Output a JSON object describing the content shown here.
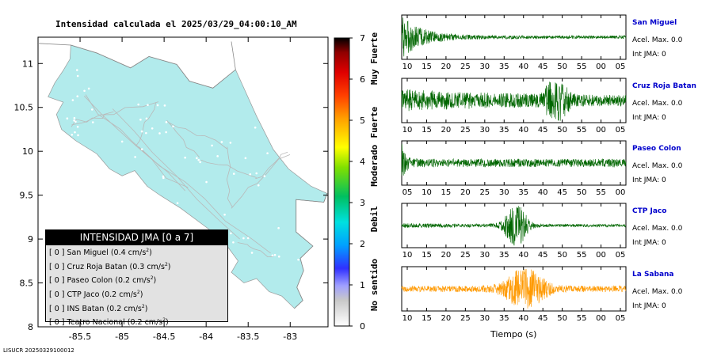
{
  "map": {
    "title": "Intensidad calculada el 2025/03/29_04:00:10_AM",
    "x_ticks": [
      "-85.5",
      "-85",
      "-84.5",
      "-84",
      "-83.5",
      "-83"
    ],
    "x_tick_values": [
      -85.5,
      -85,
      -84.5,
      -84,
      -83.5,
      -83
    ],
    "y_ticks": [
      "11",
      "10.5",
      "10",
      "9.5",
      "9",
      "8.5",
      "8"
    ],
    "y_tick_values": [
      11,
      10.5,
      10,
      9.5,
      9,
      8.5,
      8
    ],
    "xlim": [
      -86,
      -82.55
    ],
    "ylim": [
      8,
      11.3
    ],
    "land_color": "#b2ebec",
    "footer": "LISUCR 20250329100012"
  },
  "colorbar": {
    "ticks": [
      "7",
      "6",
      "5",
      "4",
      "3",
      "2",
      "1",
      "0"
    ],
    "range": [
      0,
      7
    ],
    "labels": [
      "Muy Fuerte",
      "Fuerte",
      "Moderado",
      "Debil",
      "No sentido"
    ]
  },
  "legend": {
    "title": "INTENSIDAD JMA [0 a 7]",
    "unit": "cm/s",
    "items": [
      {
        "jma": "[ 0 ]",
        "station": "San Miguel",
        "pga": "0.4"
      },
      {
        "jma": "[ 0 ]",
        "station": "Cruz Roja Batan",
        "pga": "0.3"
      },
      {
        "jma": "[ 0 ]",
        "station": "Paseo Colon",
        "pga": "0.2"
      },
      {
        "jma": "[ 0 ]",
        "station": "CTP Jaco",
        "pga": "0.2"
      },
      {
        "jma": "[ 0 ]",
        "station": "INS Batan",
        "pga": "0.2"
      },
      {
        "jma": "[ 0 ]",
        "station": "Teatro Nacional",
        "pga": "0.2"
      }
    ]
  },
  "chart_data": [
    {
      "type": "line",
      "name": "San Miguel",
      "info": {
        "accel": "Acel. Max. 0.0",
        "jma": "Int JMA: 0"
      },
      "color": "#006600",
      "x_tick_labels": [
        "10",
        "15",
        "20",
        "25",
        "30",
        "35",
        "40",
        "45",
        "50",
        "55",
        "00",
        "05"
      ],
      "signal": {
        "onset": 0.0,
        "peak_amp": 1.0,
        "base": 0.08,
        "decay": 0.09,
        "burst2": null
      }
    },
    {
      "type": "line",
      "name": "Cruz Roja Batan",
      "info": {
        "accel": "Acel. Max. 0.0",
        "jma": "Int JMA: 0"
      },
      "color": "#006600",
      "x_tick_labels": [
        "10",
        "15",
        "20",
        "25",
        "30",
        "35",
        "40",
        "45",
        "50",
        "55",
        "00",
        "05"
      ],
      "signal": {
        "onset": 0.0,
        "peak_amp": 0.35,
        "base": 0.22,
        "decay": 0.5,
        "burst2": {
          "pos": 0.69,
          "amp": 0.95,
          "width": 0.05
        }
      }
    },
    {
      "type": "line",
      "name": "Paseo Colon",
      "info": {
        "accel": "Acel. Max. 0.0",
        "jma": "Int JMA: 0"
      },
      "color": "#006600",
      "x_tick_labels": [
        "05",
        "10",
        "15",
        "20",
        "25",
        "30",
        "35",
        "40",
        "45",
        "50",
        "55",
        "00"
      ],
      "signal": {
        "onset": 0.0,
        "peak_amp": 1.0,
        "base": 0.2,
        "decay": 0.015,
        "burst2": null
      }
    },
    {
      "type": "line",
      "name": "CTP Jaco",
      "info": {
        "accel": "Acel. Max. 0.0",
        "jma": "Int JMA: 0"
      },
      "color": "#006600",
      "x_tick_labels": [
        "10",
        "15",
        "20",
        "25",
        "30",
        "35",
        "40",
        "45",
        "50",
        "55",
        "00",
        "05"
      ],
      "signal": {
        "onset": 0.0,
        "peak_amp": 0.05,
        "base": 0.06,
        "decay": 0.5,
        "burst2": {
          "pos": 0.51,
          "amp": 1.0,
          "width": 0.05
        }
      }
    },
    {
      "type": "line",
      "name": "La Sabana",
      "info": {
        "accel": "Acel. Max. 0.0",
        "jma": "Int JMA: 0"
      },
      "color": "#ff9900",
      "x_tick_labels": [
        "10",
        "15",
        "20",
        "25",
        "30",
        "35",
        "40",
        "45",
        "50",
        "55",
        "00",
        "05"
      ],
      "xlabel": "Tiempo (s)",
      "signal": {
        "onset": 0.0,
        "peak_amp": 0.0,
        "base": 0.15,
        "decay": 0.5,
        "burst2": {
          "pos": 0.55,
          "amp": 0.9,
          "width": 0.09
        }
      }
    }
  ]
}
